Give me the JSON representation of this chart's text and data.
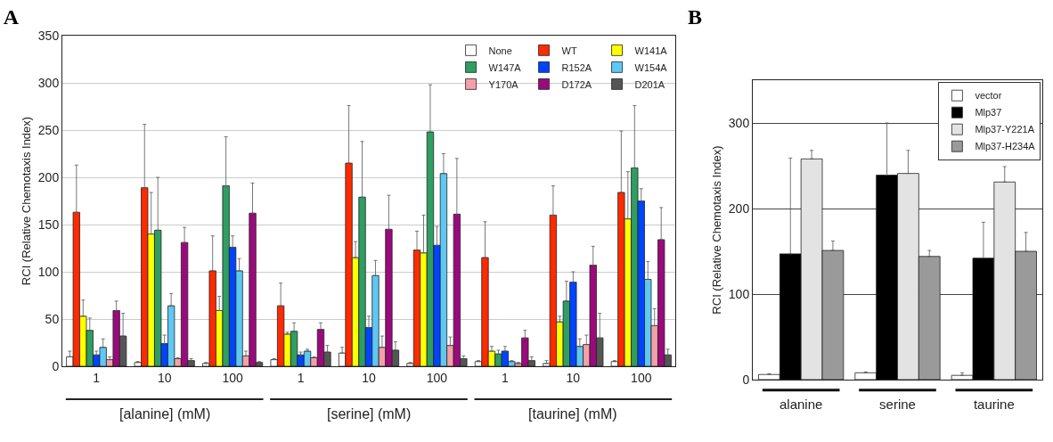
{
  "chart_data": [
    {
      "type": "bar",
      "title": "A",
      "ylabel": "RCI (Relative Chemotaxis Index)",
      "categories": [
        "1",
        "10",
        "100",
        "1",
        "10",
        "100",
        "1",
        "10",
        "100"
      ],
      "annotations": [
        "[alanine] (mM)",
        "[serine] (mM)",
        "[taurine] (mM)"
      ],
      "ylim": [
        0,
        350
      ],
      "yticks": [
        0,
        50,
        100,
        150,
        200,
        250,
        300,
        350
      ],
      "grid": "y",
      "legend": "top right",
      "series": [
        {
          "name": "None",
          "color": "#ffffff",
          "values": [
            10,
            4,
            3,
            7,
            14,
            3,
            5,
            3,
            5
          ],
          "errors": [
            [
              10,
              16
            ],
            [
              4,
              5
            ],
            [
              3,
              4
            ],
            [
              7,
              8
            ],
            [
              14,
              20
            ],
            [
              3,
              4
            ],
            [
              5,
              6
            ],
            [
              3,
              6
            ],
            [
              5,
              6
            ]
          ]
        },
        {
          "name": "WT",
          "color": "#ff2a00",
          "values": [
            163,
            189,
            101,
            64,
            215,
            123,
            115,
            160,
            184
          ],
          "errors": [
            [
              163,
              213
            ],
            [
              189,
              256
            ],
            [
              101,
              138
            ],
            [
              64,
              88
            ],
            [
              215,
              276
            ],
            [
              123,
              143
            ],
            [
              115,
              153
            ],
            [
              160,
              191
            ],
            [
              184,
              249
            ]
          ]
        },
        {
          "name": "W141A",
          "color": "#ffff00",
          "values": [
            53,
            140,
            59,
            34,
            115,
            120,
            16,
            47,
            156
          ],
          "errors": [
            [
              53,
              70
            ],
            [
              140,
              184
            ],
            [
              59,
              74
            ],
            [
              34,
              36
            ],
            [
              115,
              132
            ],
            [
              120,
              160
            ],
            [
              16,
              21
            ],
            [
              47,
              53
            ],
            [
              156,
              206
            ]
          ]
        },
        {
          "name": "W147A",
          "color": "#2e9e62",
          "values": [
            38,
            144,
            191,
            37,
            179,
            248,
            13,
            69,
            210
          ],
          "errors": [
            [
              38,
              51
            ],
            [
              144,
              200
            ],
            [
              191,
              243
            ],
            [
              37,
              46
            ],
            [
              179,
              238
            ],
            [
              248,
              298
            ],
            [
              13,
              17
            ],
            [
              69,
              90
            ],
            [
              210,
              276
            ]
          ]
        },
        {
          "name": "R152A",
          "color": "#0044ff",
          "values": [
            12,
            24,
            126,
            12,
            41,
            128,
            16,
            89,
            175
          ],
          "errors": [
            [
              12,
              16
            ],
            [
              24,
              33
            ],
            [
              126,
              138
            ],
            [
              12,
              15
            ],
            [
              41,
              53
            ],
            [
              128,
              148
            ],
            [
              16,
              21
            ],
            [
              89,
              100
            ],
            [
              175,
              188
            ]
          ]
        },
        {
          "name": "W154A",
          "color": "#5ec8f5",
          "values": [
            20,
            64,
            101,
            16,
            96,
            204,
            5,
            21,
            92
          ],
          "errors": [
            [
              20,
              29
            ],
            [
              64,
              77
            ],
            [
              101,
              114
            ],
            [
              16,
              18
            ],
            [
              96,
              112
            ],
            [
              204,
              225
            ],
            [
              5,
              6
            ],
            [
              21,
              29
            ],
            [
              92,
              111
            ]
          ]
        },
        {
          "name": "Y170A",
          "color": "#f5a0a8",
          "values": [
            7,
            8,
            11,
            9,
            20,
            22,
            3,
            23,
            43
          ],
          "errors": [
            [
              7,
              10
            ],
            [
              8,
              9
            ],
            [
              11,
              16
            ],
            [
              9,
              10
            ],
            [
              20,
              32
            ],
            [
              22,
              31
            ],
            [
              3,
              4
            ],
            [
              23,
              33
            ],
            [
              43,
              61
            ]
          ]
        },
        {
          "name": "D172A",
          "color": "#9a0a7c",
          "values": [
            59,
            131,
            162,
            39,
            145,
            161,
            30,
            107,
            134
          ],
          "errors": [
            [
              59,
              69
            ],
            [
              131,
              147
            ],
            [
              162,
              194
            ],
            [
              39,
              46
            ],
            [
              145,
              181
            ],
            [
              161,
              220
            ],
            [
              30,
              38
            ],
            [
              107,
              127
            ],
            [
              134,
              168
            ]
          ]
        },
        {
          "name": "D201A",
          "color": "#555555",
          "values": [
            32,
            6,
            4,
            15,
            17,
            8,
            6,
            30,
            12
          ],
          "errors": [
            [
              32,
              56
            ],
            [
              6,
              8
            ],
            [
              4,
              5
            ],
            [
              15,
              22
            ],
            [
              17,
              26
            ],
            [
              8,
              11
            ],
            [
              6,
              10
            ],
            [
              30,
              56
            ],
            [
              12,
              18
            ]
          ]
        }
      ]
    },
    {
      "type": "bar",
      "title": "B",
      "ylabel": "RCI (Relative Chemotaxis Index)",
      "categories": [
        "alanine",
        "serine",
        "taurine"
      ],
      "ylim": [
        0,
        350
      ],
      "yticks": [
        0,
        100,
        200,
        300
      ],
      "grid": "y",
      "legend": "top right",
      "series": [
        {
          "name": "vector",
          "color": "#ffffff",
          "values": [
            6,
            8,
            5
          ],
          "errors": [
            [
              6,
              7
            ],
            [
              8,
              9
            ],
            [
              5,
              8
            ]
          ]
        },
        {
          "name": "Mlp37",
          "color": "#000000",
          "values": [
            147,
            239,
            142
          ],
          "errors": [
            [
              147,
              259
            ],
            [
              239,
              300
            ],
            [
              142,
              184
            ]
          ]
        },
        {
          "name": "Mlp37-Y221A",
          "color": "#e3e3e3",
          "values": [
            258,
            241,
            231
          ],
          "errors": [
            [
              258,
              268
            ],
            [
              241,
              268
            ],
            [
              231,
              249
            ]
          ]
        },
        {
          "name": "Mlp37-H234A",
          "color": "#9a9a9a",
          "values": [
            151,
            144,
            150
          ],
          "errors": [
            [
              151,
              162
            ],
            [
              144,
              151
            ],
            [
              150,
              172
            ]
          ]
        }
      ]
    }
  ]
}
